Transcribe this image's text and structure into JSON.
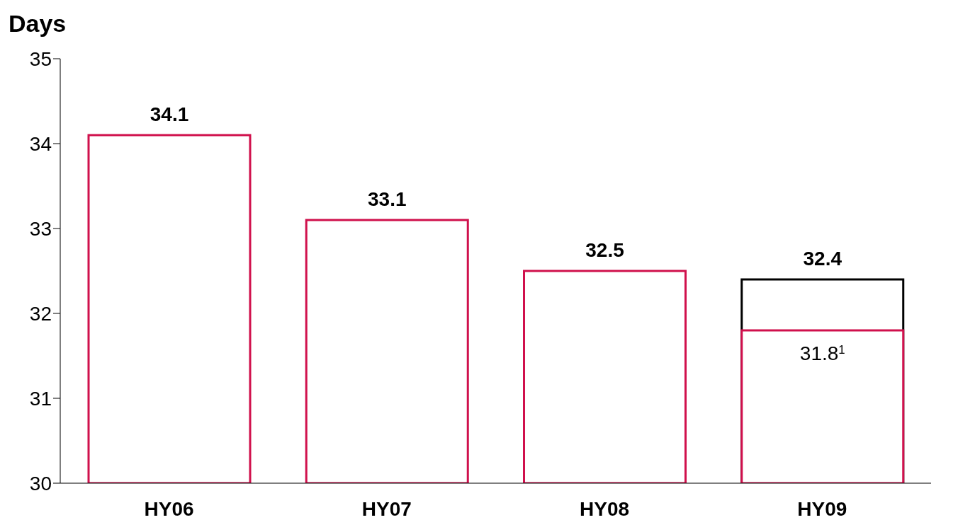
{
  "chart_data": {
    "type": "bar",
    "ylabel": "Days",
    "categories": [
      "HY06",
      "HY07",
      "HY08",
      "HY09"
    ],
    "ylim": [
      30,
      35
    ],
    "yticks": [
      30,
      31,
      32,
      33,
      34,
      35
    ],
    "series": [
      {
        "color": "#000000",
        "values": [
          null,
          null,
          null,
          32.4
        ],
        "value_labels": [
          null,
          null,
          null,
          "32.4"
        ]
      },
      {
        "color": "#d0104c",
        "values": [
          34.1,
          33.1,
          32.5,
          31.8
        ],
        "value_labels": [
          "34.1",
          "33.1",
          "32.5",
          "31.8$^{1}$"
        ]
      }
    ]
  }
}
